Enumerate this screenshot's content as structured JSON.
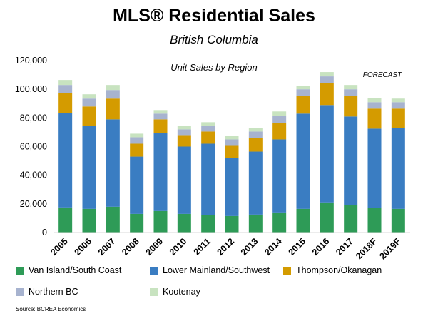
{
  "title": "MLS® Residential Sales",
  "subtitle": "British Columbia",
  "source": "Source: BCREA Economics",
  "chart_data": {
    "type": "bar",
    "stacked": true,
    "title": "Unit Sales by Region",
    "annotation": "FORECAST",
    "categories": [
      "2005",
      "2006",
      "2007",
      "2008",
      "2009",
      "2010",
      "2011",
      "2012",
      "2013",
      "2014",
      "2015",
      "2016",
      "2017",
      "2018F",
      "2019F"
    ],
    "ylim": [
      0,
      120000
    ],
    "yticks": [
      0,
      20000,
      40000,
      60000,
      80000,
      100000,
      120000
    ],
    "ytick_labels": [
      "0",
      "20,000",
      "40,000",
      "60,000",
      "80,000",
      "100,000",
      "120,000"
    ],
    "grid": false,
    "legend_position": "bottom",
    "series": [
      {
        "name": "Van Island/South Coast",
        "color": "#2e9b57",
        "values": [
          17500,
          16500,
          18000,
          13000,
          15000,
          13000,
          12000,
          11500,
          12500,
          14000,
          16500,
          21000,
          19000,
          17000,
          16500
        ]
      },
      {
        "name": "Lower Mainland/Southwest",
        "color": "#3a7dc2",
        "values": [
          66000,
          58000,
          61000,
          40000,
          54500,
          47000,
          50000,
          40500,
          44000,
          51000,
          66500,
          68000,
          62000,
          55500,
          56500
        ]
      },
      {
        "name": "Thompson/Okanagan",
        "color": "#d49b00",
        "values": [
          14000,
          13500,
          14500,
          9000,
          9500,
          8000,
          8500,
          9000,
          9500,
          11500,
          12500,
          15500,
          14500,
          14000,
          13500
        ]
      },
      {
        "name": "Northern BC",
        "color": "#a7b3cf",
        "values": [
          5500,
          5500,
          6000,
          4500,
          4000,
          4000,
          4000,
          4000,
          4500,
          5000,
          4500,
          4500,
          4500,
          4500,
          4500
        ]
      },
      {
        "name": "Kootenay",
        "color": "#c8e3c0",
        "values": [
          3500,
          3000,
          3500,
          2500,
          2500,
          2500,
          2500,
          2500,
          2500,
          3000,
          2500,
          3000,
          3000,
          3000,
          2500
        ]
      }
    ]
  }
}
